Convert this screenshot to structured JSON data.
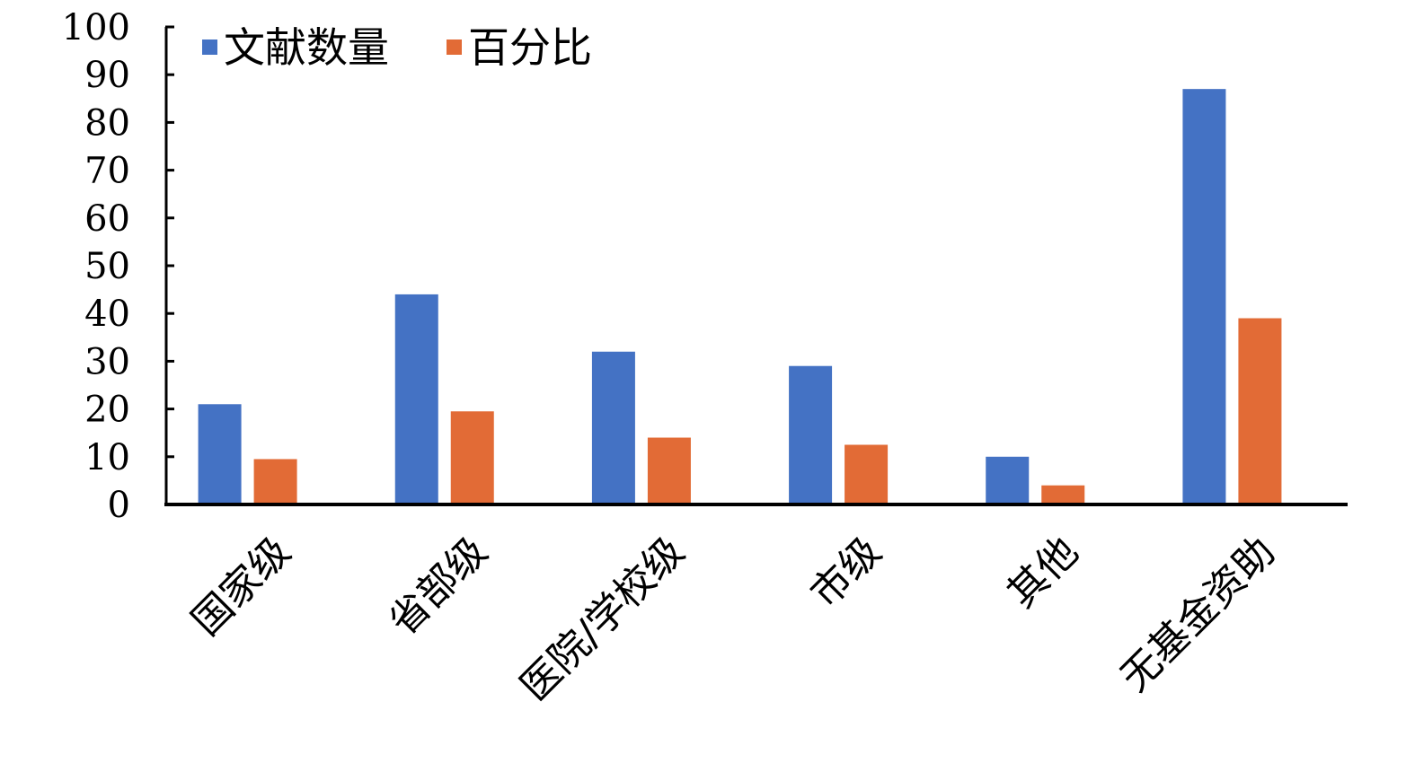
{
  "chart_data": {
    "type": "bar",
    "categories": [
      "国家级",
      "省部级",
      "医院/学校级",
      "市级",
      "其他",
      "无基金资助"
    ],
    "series": [
      {
        "name": "文献数量",
        "color": "#4472C4",
        "values": [
          21,
          44,
          32,
          29,
          10,
          87
        ]
      },
      {
        "name": "百分比",
        "color": "#E26B36",
        "values": [
          9.5,
          19.5,
          14,
          12.5,
          4,
          39
        ]
      }
    ],
    "title": "",
    "xlabel": "",
    "ylabel": "",
    "ylim": [
      0,
      100
    ],
    "yticks": [
      "0",
      "10",
      "20",
      "30",
      "40",
      "50",
      "60",
      "70",
      "80",
      "90",
      "100"
    ],
    "grid": false,
    "legend_position": "top-left"
  }
}
